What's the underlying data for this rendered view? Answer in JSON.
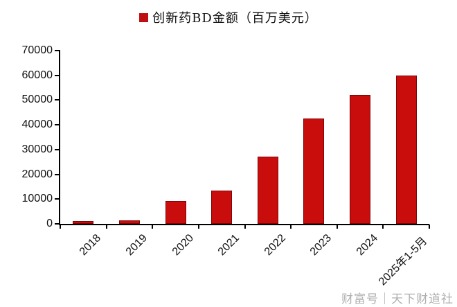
{
  "legend": {
    "label": "创新药BD金额（百万美元）",
    "swatch_color": "#BE1010"
  },
  "chart_data": {
    "type": "bar",
    "title": "创新药BD金额（百万美元）",
    "categories": [
      "2018",
      "2019",
      "2020",
      "2021",
      "2022",
      "2023",
      "2024",
      "2025年1-5月"
    ],
    "values": [
      1100,
      1300,
      9200,
      13500,
      27300,
      42500,
      52000,
      60000
    ],
    "xlabel": "",
    "ylabel": "",
    "unit": "百万美元",
    "ylim": [
      0,
      70000
    ],
    "y_ticks": [
      "0",
      "10000",
      "20000",
      "30000",
      "40000",
      "50000",
      "60000",
      "70000"
    ],
    "grid": "off",
    "legend_position": "top-center",
    "x_label_rotation_deg": 45,
    "bar_color": "#C90D0D",
    "bar_border_color": "#7E0404",
    "axis_color": "#000000",
    "background_color": "#FFFFFF"
  },
  "watermark": {
    "text": "财富号｜天下财道社"
  }
}
